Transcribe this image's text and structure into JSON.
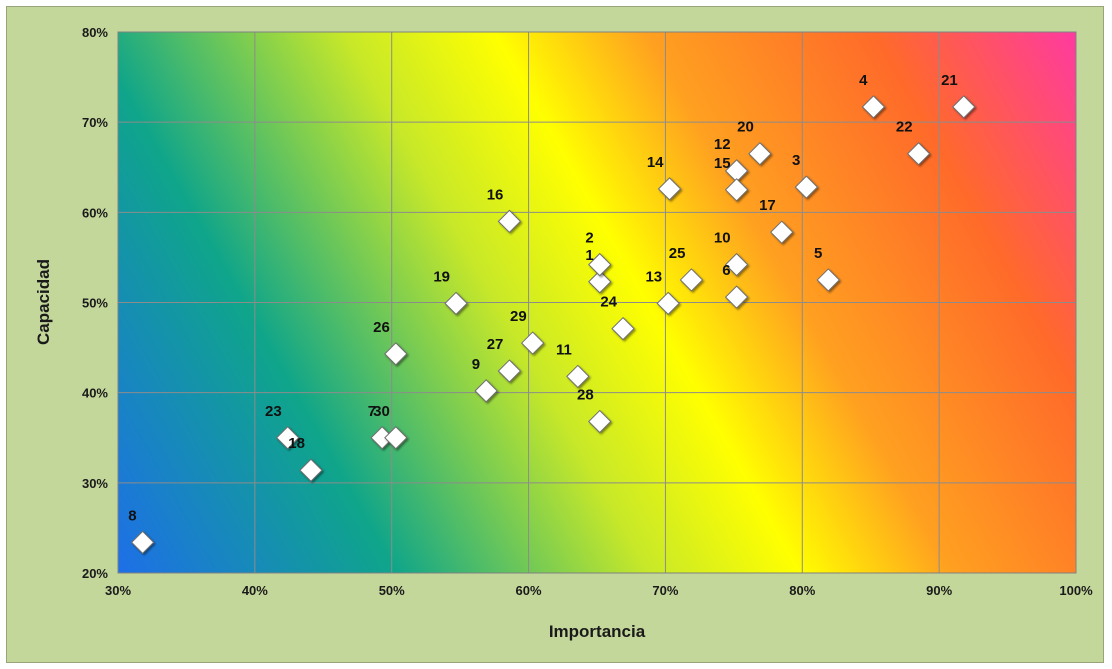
{
  "chart_data": {
    "type": "scatter",
    "title": "",
    "xlabel": "Importancia",
    "ylabel": "Capacidad",
    "xlim": [
      0.3,
      1.0
    ],
    "ylim": [
      0.2,
      0.8
    ],
    "x_ticks": [
      "30%",
      "40%",
      "50%",
      "60%",
      "70%",
      "80%",
      "90%",
      "100%"
    ],
    "y_ticks": [
      "20%",
      "30%",
      "40%",
      "50%",
      "60%",
      "70%",
      "80%"
    ],
    "grid": true,
    "legend": "none",
    "marker": "diamond",
    "marker_color": "#ffffff",
    "background_gradient": [
      "#1e6fe8",
      "#0fa58a",
      "#c7e829",
      "#ffff00",
      "#ffa020",
      "#ff6a2a",
      "#ff3aa0"
    ],
    "points": [
      {
        "label": "1",
        "x": 0.652,
        "y": 0.523
      },
      {
        "label": "2",
        "x": 0.652,
        "y": 0.542
      },
      {
        "label": "3",
        "x": 0.803,
        "y": 0.628
      },
      {
        "label": "4",
        "x": 0.852,
        "y": 0.717
      },
      {
        "label": "5",
        "x": 0.819,
        "y": 0.525
      },
      {
        "label": "6",
        "x": 0.752,
        "y": 0.506
      },
      {
        "label": "7",
        "x": 0.493,
        "y": 0.35
      },
      {
        "label": "8",
        "x": 0.318,
        "y": 0.234
      },
      {
        "label": "9",
        "x": 0.569,
        "y": 0.402
      },
      {
        "label": "10",
        "x": 0.752,
        "y": 0.542
      },
      {
        "label": "11",
        "x": 0.636,
        "y": 0.418
      },
      {
        "label": "12",
        "x": 0.752,
        "y": 0.646
      },
      {
        "label": "13",
        "x": 0.702,
        "y": 0.499
      },
      {
        "label": "14",
        "x": 0.703,
        "y": 0.626
      },
      {
        "label": "15",
        "x": 0.752,
        "y": 0.625
      },
      {
        "label": "16",
        "x": 0.586,
        "y": 0.59
      },
      {
        "label": "17",
        "x": 0.785,
        "y": 0.578
      },
      {
        "label": "18",
        "x": 0.441,
        "y": 0.314
      },
      {
        "label": "19",
        "x": 0.547,
        "y": 0.499
      },
      {
        "label": "20",
        "x": 0.769,
        "y": 0.665
      },
      {
        "label": "21",
        "x": 0.918,
        "y": 0.717
      },
      {
        "label": "22",
        "x": 0.885,
        "y": 0.665
      },
      {
        "label": "23",
        "x": 0.424,
        "y": 0.35
      },
      {
        "label": "24",
        "x": 0.669,
        "y": 0.471
      },
      {
        "label": "25",
        "x": 0.719,
        "y": 0.525
      },
      {
        "label": "26",
        "x": 0.503,
        "y": 0.443
      },
      {
        "label": "27",
        "x": 0.586,
        "y": 0.424
      },
      {
        "label": "28",
        "x": 0.652,
        "y": 0.368
      },
      {
        "label": "29",
        "x": 0.603,
        "y": 0.455
      },
      {
        "label": "30",
        "x": 0.503,
        "y": 0.35
      }
    ]
  }
}
